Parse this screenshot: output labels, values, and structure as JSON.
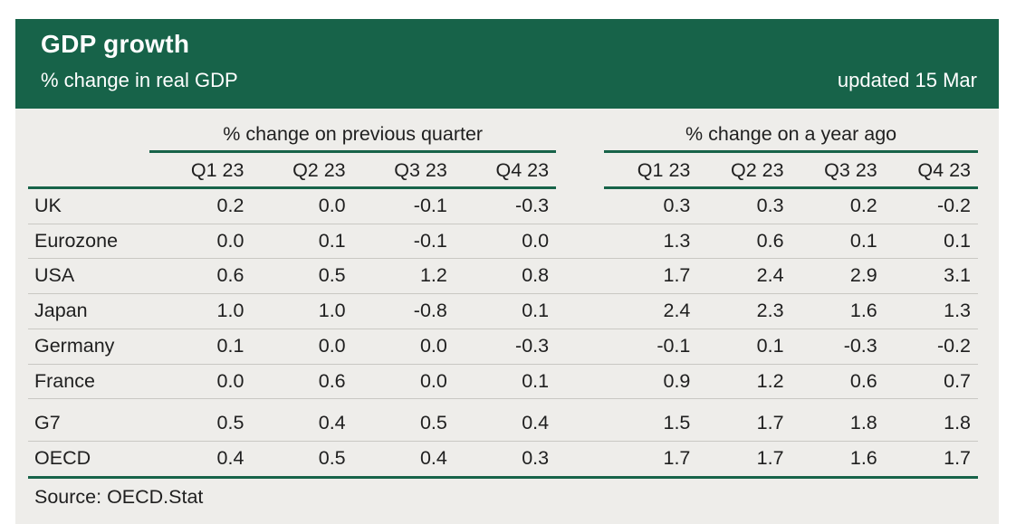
{
  "header": {
    "title": "GDP growth",
    "subtitle": "% change in real GDP",
    "updated": "updated 15 Mar"
  },
  "table": {
    "group_headers": [
      "% change on previous quarter",
      "% change on a year ago"
    ],
    "quarter_columns": [
      "Q1 23",
      "Q2 23",
      "Q3 23",
      "Q4 23"
    ],
    "rows": [
      {
        "label": "UK",
        "qoq": [
          "0.2",
          "0.0",
          "-0.1",
          "-0.3"
        ],
        "yoy": [
          "0.3",
          "0.3",
          "0.2",
          "-0.2"
        ]
      },
      {
        "label": "Eurozone",
        "qoq": [
          "0.0",
          "0.1",
          "-0.1",
          "0.0"
        ],
        "yoy": [
          "1.3",
          "0.6",
          "0.1",
          "0.1"
        ]
      },
      {
        "label": "USA",
        "qoq": [
          "0.6",
          "0.5",
          "1.2",
          "0.8"
        ],
        "yoy": [
          "1.7",
          "2.4",
          "2.9",
          "3.1"
        ]
      },
      {
        "label": "Japan",
        "qoq": [
          "1.0",
          "1.0",
          "-0.8",
          "0.1"
        ],
        "yoy": [
          "2.4",
          "2.3",
          "1.6",
          "1.3"
        ]
      },
      {
        "label": "Germany",
        "qoq": [
          "0.1",
          "0.0",
          "0.0",
          "-0.3"
        ],
        "yoy": [
          "-0.1",
          "0.1",
          "-0.3",
          "-0.2"
        ]
      },
      {
        "label": "France",
        "qoq": [
          "0.0",
          "0.6",
          "0.0",
          "0.1"
        ],
        "yoy": [
          "0.9",
          "1.2",
          "0.6",
          "0.7"
        ]
      },
      {
        "label": "G7",
        "qoq": [
          "0.5",
          "0.4",
          "0.5",
          "0.4"
        ],
        "yoy": [
          "1.5",
          "1.7",
          "1.8",
          "1.8"
        ]
      },
      {
        "label": "OECD",
        "qoq": [
          "0.4",
          "0.5",
          "0.4",
          "0.3"
        ],
        "yoy": [
          "1.7",
          "1.7",
          "1.6",
          "1.7"
        ]
      }
    ],
    "source": "Source: OECD.Stat"
  },
  "colors": {
    "accent_green": "#176349",
    "panel_bg": "#eeedea",
    "separator_gray": "#c9c8c3",
    "text": "#1f1f1f",
    "header_text": "#ffffff"
  },
  "chart_data": {
    "type": "table",
    "title": "GDP growth",
    "subtitle": "% change in real GDP",
    "updated": "updated 15 Mar",
    "row_labels": [
      "UK",
      "Eurozone",
      "USA",
      "Japan",
      "Germany",
      "France",
      "G7",
      "OECD"
    ],
    "column_groups": [
      {
        "name": "% change on previous quarter",
        "columns": [
          "Q1 23",
          "Q2 23",
          "Q3 23",
          "Q4 23"
        ],
        "values": [
          [
            0.2,
            0.0,
            -0.1,
            -0.3
          ],
          [
            0.0,
            0.1,
            -0.1,
            0.0
          ],
          [
            0.6,
            0.5,
            1.2,
            0.8
          ],
          [
            1.0,
            1.0,
            -0.8,
            0.1
          ],
          [
            0.1,
            0.0,
            0.0,
            -0.3
          ],
          [
            0.0,
            0.6,
            0.0,
            0.1
          ],
          [
            0.5,
            0.4,
            0.5,
            0.4
          ],
          [
            0.4,
            0.5,
            0.4,
            0.3
          ]
        ]
      },
      {
        "name": "% change on a year ago",
        "columns": [
          "Q1 23",
          "Q2 23",
          "Q3 23",
          "Q4 23"
        ],
        "values": [
          [
            0.3,
            0.3,
            0.2,
            -0.2
          ],
          [
            1.3,
            0.6,
            0.1,
            0.1
          ],
          [
            1.7,
            2.4,
            2.9,
            3.1
          ],
          [
            2.4,
            2.3,
            1.6,
            1.3
          ],
          [
            -0.1,
            0.1,
            -0.3,
            -0.2
          ],
          [
            0.9,
            1.2,
            0.6,
            0.7
          ],
          [
            1.5,
            1.7,
            1.8,
            1.8
          ],
          [
            1.7,
            1.7,
            1.6,
            1.7
          ]
        ]
      }
    ],
    "source": "Source: OECD.Stat"
  }
}
